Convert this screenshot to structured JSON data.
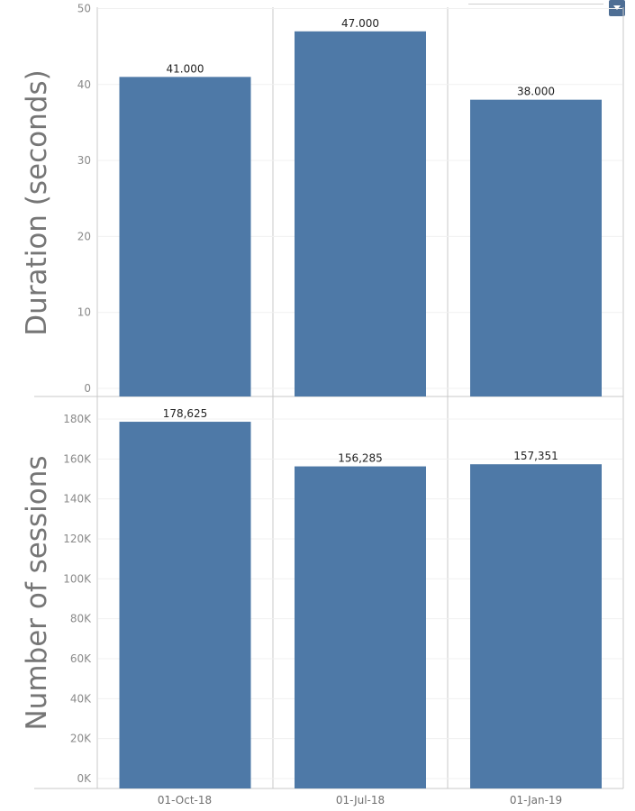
{
  "chart_data": [
    {
      "type": "bar",
      "ylabel": "Duration (seconds)",
      "categories": [
        "01-Oct-18",
        "01-Jul-18",
        "01-Jan-19"
      ],
      "values": [
        41,
        47,
        38
      ],
      "value_labels": [
        "41.000",
        "47.000",
        "38.000"
      ],
      "ylim": [
        0,
        52
      ],
      "yticks": [
        0,
        10,
        20,
        30,
        40,
        50
      ],
      "ytick_labels": [
        "0",
        "10",
        "20",
        "30",
        "40",
        "50"
      ],
      "bar_color": "#4e79a7",
      "grid": true
    },
    {
      "type": "bar",
      "ylabel": "Number of sessions",
      "categories": [
        "01-Oct-18",
        "01-Jul-18",
        "01-Jan-19"
      ],
      "values": [
        178625,
        156285,
        157351
      ],
      "value_labels": [
        "178,625",
        "156,285",
        "157,351"
      ],
      "ylim": [
        0,
        185000
      ],
      "yticks": [
        0,
        20000,
        40000,
        60000,
        80000,
        100000,
        120000,
        140000,
        160000,
        180000
      ],
      "ytick_labels": [
        "0K",
        "20K",
        "40K",
        "60K",
        "80K",
        "100K",
        "120K",
        "140K",
        "160K",
        "180K"
      ],
      "bar_color": "#4e79a7",
      "grid": true
    }
  ],
  "x_axis_labels": [
    "01-Oct-18",
    "01-Jul-18",
    "01-Jan-19"
  ],
  "menu_icon": "dropdown-arrow-icon"
}
